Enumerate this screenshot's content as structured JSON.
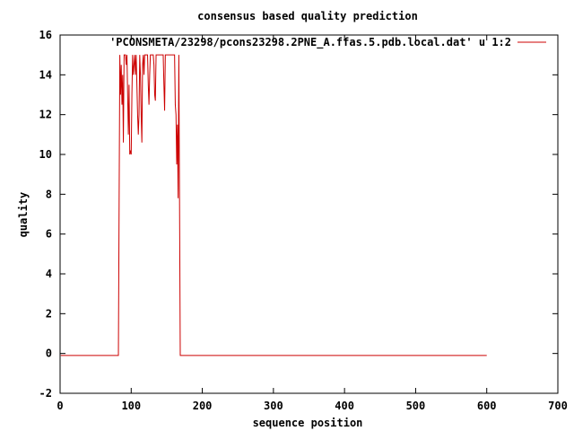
{
  "chart_data": {
    "type": "line",
    "title": "consensus based quality prediction",
    "xlabel": "sequence position",
    "ylabel": "quality",
    "xlim": [
      0,
      700
    ],
    "ylim": [
      -2,
      16
    ],
    "xticks": [
      0,
      100,
      200,
      300,
      400,
      500,
      600,
      700
    ],
    "yticks": [
      -2,
      0,
      2,
      4,
      6,
      8,
      10,
      12,
      14,
      16
    ],
    "grid": false,
    "legend_position": "top-right",
    "series": [
      {
        "name": "'PCONSMETA/23298/pcons23298.2PNE_A.ffas.5.pdb.local.dat' u 1:2",
        "color": "#cc0000",
        "x": [
          1,
          82,
          83,
          84,
          85,
          86,
          87,
          88,
          89,
          90,
          91,
          92,
          93,
          94,
          95,
          96,
          97,
          98,
          99,
          100,
          101,
          102,
          103,
          104,
          105,
          106,
          107,
          108,
          109,
          110,
          111,
          112,
          113,
          114,
          115,
          116,
          117,
          118,
          119,
          120,
          121,
          122,
          123,
          124,
          125,
          126,
          127,
          128,
          129,
          130,
          131,
          132,
          133,
          134,
          135,
          136,
          137,
          138,
          139,
          140,
          141,
          142,
          143,
          144,
          145,
          146,
          147,
          148,
          149,
          150,
          151,
          152,
          153,
          154,
          155,
          156,
          157,
          158,
          159,
          160,
          161,
          162,
          163,
          164,
          165,
          166,
          167,
          168,
          169,
          600
        ],
        "y": [
          -0.1,
          -0.1,
          7.5,
          15,
          13,
          14.5,
          12.5,
          14,
          10.6,
          15,
          15,
          15,
          14.5,
          15,
          13,
          11,
          13.5,
          10,
          10.2,
          10,
          13,
          15,
          14,
          14.5,
          15,
          14,
          15,
          13.5,
          12,
          11,
          12,
          15,
          14,
          12,
          10.6,
          14.5,
          15,
          14,
          15,
          15,
          15,
          15,
          15,
          13.5,
          12.5,
          14,
          15,
          15,
          15,
          15,
          15,
          14.5,
          13,
          12.7,
          15,
          15,
          15,
          15,
          15,
          15,
          15,
          15,
          15,
          15,
          15,
          13.5,
          12.2,
          15,
          15,
          15,
          15,
          15,
          15,
          15,
          15,
          15,
          15,
          15,
          15,
          15,
          15,
          12.5,
          12,
          9.5,
          11.5,
          7.8,
          15,
          7.5,
          -0.1,
          -0.1
        ]
      }
    ]
  }
}
